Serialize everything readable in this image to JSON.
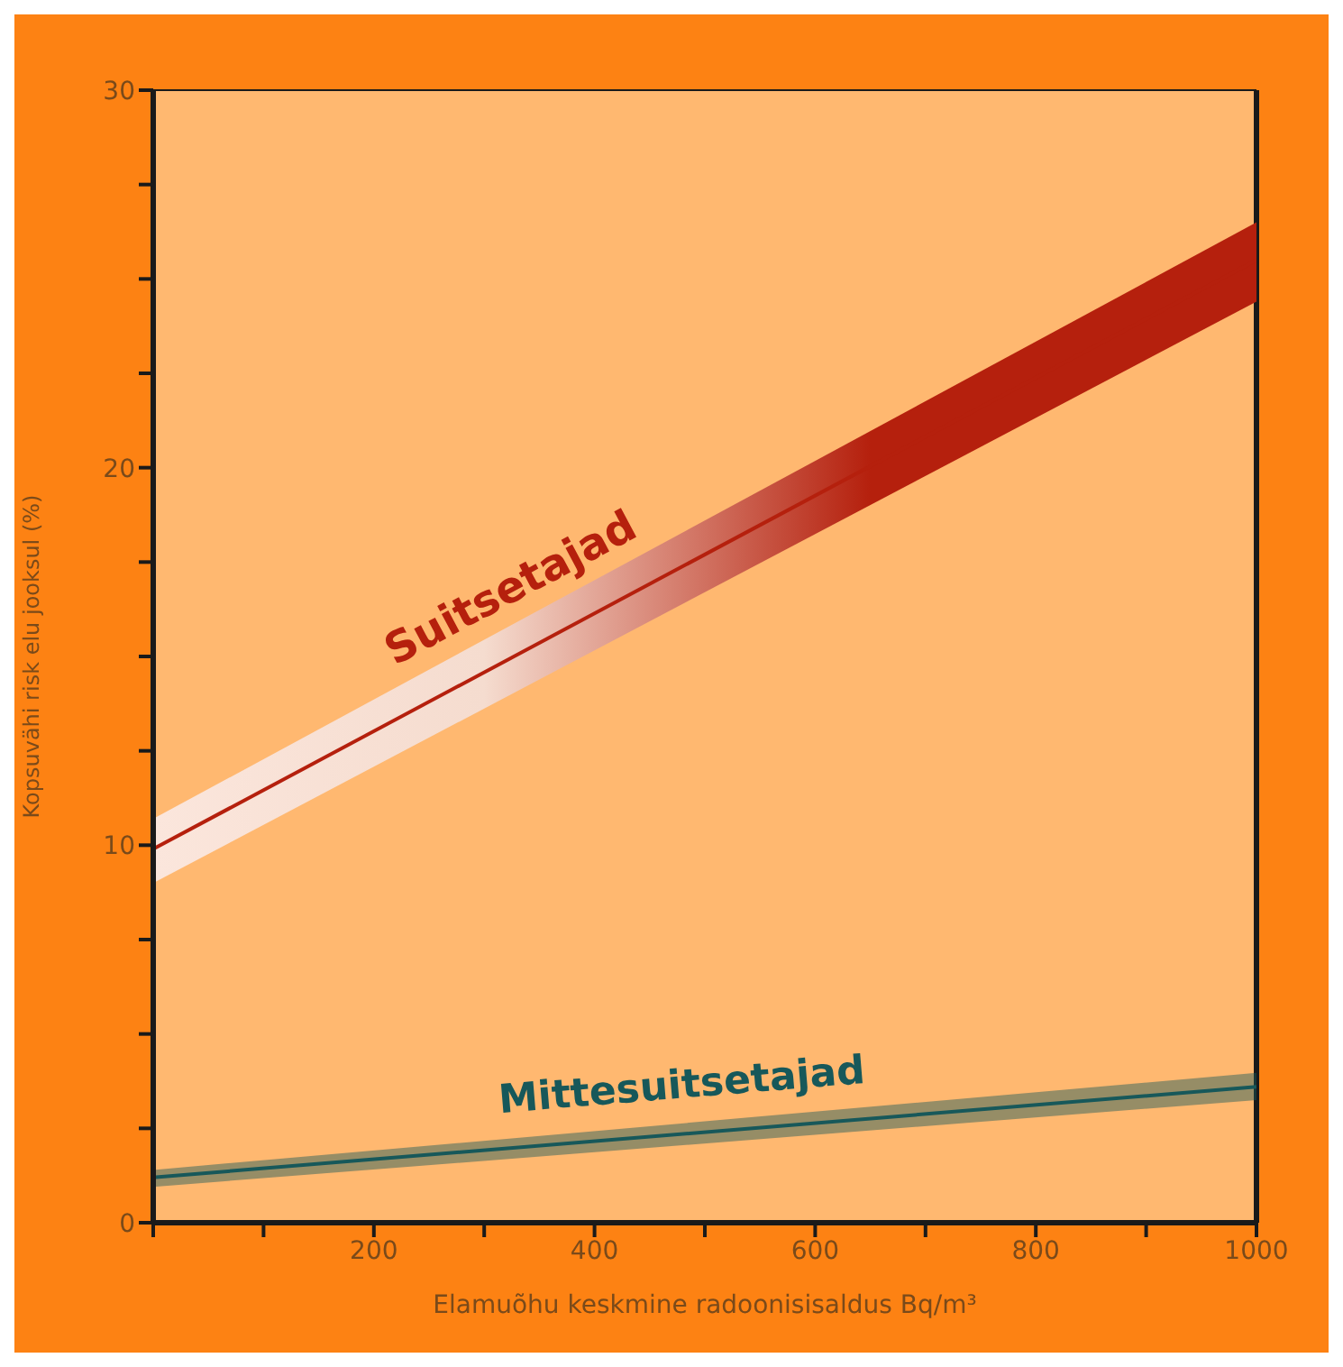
{
  "chart_data": {
    "type": "line",
    "xlabel": "Elamuõhu keskmine radoonisisaldus Bq/m³",
    "ylabel": "Kopsuvähi risk elu jooksul (%)",
    "x": [
      0,
      1000
    ],
    "series": [
      {
        "name": "Suitsetajad",
        "color": "#b5200d",
        "values": [
          9.9,
          25.5
        ],
        "lower": [
          9.0,
          24.4
        ],
        "upper": [
          10.7,
          26.5
        ]
      },
      {
        "name": "Mittesuitsetajad",
        "color": "#17585a",
        "values": [
          1.2,
          3.6
        ],
        "lower": [
          0.95,
          3.25
        ],
        "upper": [
          1.4,
          3.97
        ]
      }
    ],
    "xlim": [
      0,
      1000
    ],
    "xticks": [
      {
        "value": 0,
        "label": null
      },
      {
        "value": 100,
        "label": null
      },
      200,
      {
        "value": 300,
        "label": null
      },
      400,
      {
        "value": 500,
        "label": null
      },
      600,
      {
        "value": 700,
        "label": null
      },
      800,
      {
        "value": 900,
        "label": null
      },
      1000
    ],
    "ylim": [
      0,
      30
    ],
    "yticks": [
      0,
      {
        "value": 2.5,
        "label": null
      },
      {
        "value": 5,
        "label": null
      },
      {
        "value": 7.5,
        "label": null
      },
      10,
      {
        "value": 12.5,
        "label": null
      },
      {
        "value": 15,
        "label": null
      },
      {
        "value": 17.5,
        "label": null
      },
      20,
      {
        "value": 22.5,
        "label": null
      },
      {
        "value": 25,
        "label": null
      },
      {
        "value": 27.5,
        "label": null
      },
      30
    ],
    "legend": false
  }
}
